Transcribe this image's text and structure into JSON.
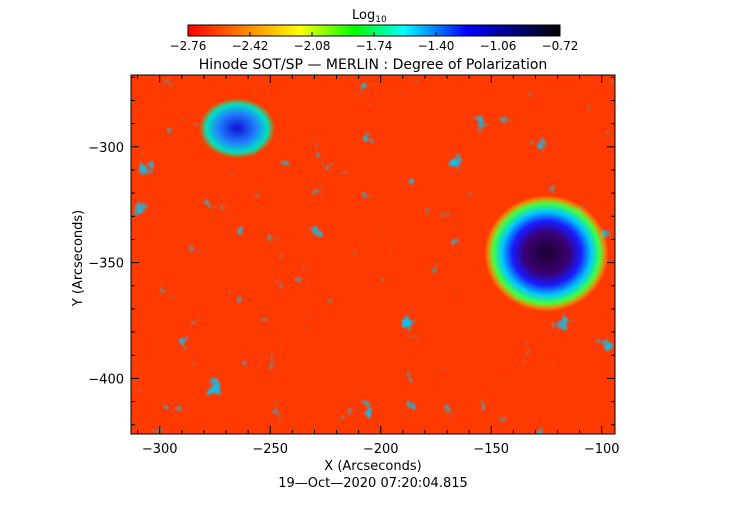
{
  "chart_data": {
    "type": "heatmap",
    "title": "Hinode SOT/SP — MERLIN : Degree of Polarization",
    "xlabel": "X (Arcseconds)",
    "ylabel": "Y (Arcseconds)",
    "timestamp": "19—Oct—2020 07:20:04.815",
    "xlim": [
      -313,
      -94
    ],
    "ylim": [
      -424,
      -269
    ],
    "x_ticks": [
      -300,
      -250,
      -200,
      -150,
      -100
    ],
    "x_tick_labels": [
      "−300",
      "−250",
      "−200",
      "−150",
      "−100"
    ],
    "y_ticks": [
      -300,
      -350,
      -400
    ],
    "y_tick_labels": [
      "−300",
      "−350",
      "−400"
    ],
    "colorbar": {
      "label": "Log",
      "label_subscript": "10",
      "range": [
        -2.76,
        -0.72
      ],
      "ticks": [
        -2.76,
        -2.42,
        -2.08,
        -1.74,
        -1.4,
        -1.06,
        -0.72
      ],
      "tick_labels": [
        "−2.76",
        "−2.42",
        "−2.08",
        "−1.74",
        "−1.40",
        "−1.06",
        "−0.72"
      ],
      "colormap": [
        "#ff0000",
        "#ff7f00",
        "#ffff00",
        "#00ff00",
        "#00ffff",
        "#0000ff",
        "#000000"
      ]
    },
    "features": [
      {
        "kind": "sunspot-umbra",
        "x": -125,
        "y": -346,
        "log_value": -0.85
      },
      {
        "kind": "plage-network",
        "x": -265,
        "y": -292,
        "log_value": -1.1
      }
    ],
    "background_log_value": -2.5
  }
}
